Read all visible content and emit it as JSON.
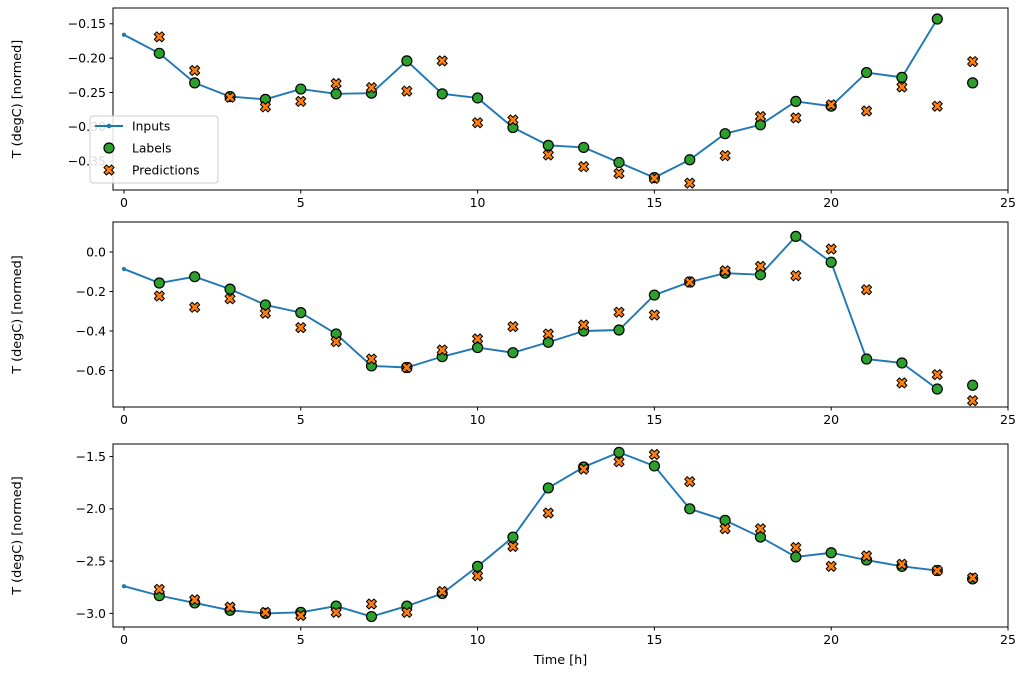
{
  "figure": {
    "kind": "matplotlib time-series forecast figure, 3 stacked subplots",
    "background": "#ffffff"
  },
  "xlabel": "Time [h]",
  "ylabel": "T (degC) [normed]",
  "x_ticks": {
    "values": [
      0,
      5,
      10,
      15,
      20,
      25
    ],
    "labels": [
      "0",
      "5",
      "10",
      "15",
      "20",
      "25"
    ]
  },
  "legend": {
    "items": [
      {
        "label": "Inputs",
        "marker": "line-dot"
      },
      {
        "label": "Labels",
        "marker": "circle"
      },
      {
        "label": "Predictions",
        "marker": "x-cross"
      }
    ]
  },
  "colors": {
    "inputs": "#1f77b4",
    "labels": "#2ca02c",
    "predictions": "#ff7f0e",
    "marker_edge": "#000000",
    "spine": "#000000",
    "legend_border": "#cccccc",
    "legend_bg": "#ffffff"
  },
  "chart_data": [
    {
      "type": "line",
      "subtitle": "subplot 1 of 3",
      "xlabel": "",
      "ylabel": "T (degC) [normed]",
      "xlim": [
        -0.31,
        25.0
      ],
      "ylim": [
        -0.392,
        -0.127
      ],
      "yticks": {
        "values": [
          -0.15,
          -0.2,
          -0.25,
          -0.3,
          -0.35
        ],
        "labels": [
          "−0.15",
          "−0.20",
          "−0.25",
          "−0.30",
          "−0.35"
        ]
      },
      "legend_visible": true,
      "series": [
        {
          "name": "Inputs",
          "style": "line-dot",
          "x": [
            0,
            1,
            2,
            3,
            4,
            5,
            6,
            7,
            8,
            9,
            10,
            11,
            12,
            13,
            14,
            15,
            16,
            17,
            18,
            19,
            20,
            21,
            22,
            23
          ],
          "y": [
            -0.166,
            -0.193,
            -0.236,
            -0.256,
            -0.26,
            -0.245,
            -0.252,
            -0.251,
            -0.204,
            -0.252,
            -0.258,
            -0.301,
            -0.327,
            -0.33,
            -0.352,
            -0.374,
            -0.348,
            -0.31,
            -0.297,
            -0.263,
            -0.27,
            -0.221,
            -0.228,
            -0.143
          ]
        },
        {
          "name": "Labels",
          "style": "circle",
          "x": [
            1,
            2,
            3,
            4,
            5,
            6,
            7,
            8,
            9,
            10,
            11,
            12,
            13,
            14,
            15,
            16,
            17,
            18,
            19,
            20,
            21,
            22,
            23,
            24
          ],
          "y": [
            -0.193,
            -0.236,
            -0.256,
            -0.26,
            -0.245,
            -0.252,
            -0.251,
            -0.204,
            -0.252,
            -0.258,
            -0.301,
            -0.327,
            -0.33,
            -0.352,
            -0.374,
            -0.348,
            -0.31,
            -0.297,
            -0.263,
            -0.27,
            -0.221,
            -0.228,
            -0.143,
            -0.236
          ]
        },
        {
          "name": "Predictions",
          "style": "x-cross",
          "x": [
            1,
            2,
            3,
            4,
            5,
            6,
            7,
            8,
            9,
            10,
            11,
            12,
            13,
            14,
            15,
            16,
            17,
            18,
            19,
            20,
            21,
            22,
            23,
            24
          ],
          "y": [
            -0.169,
            -0.218,
            -0.257,
            -0.271,
            -0.263,
            -0.237,
            -0.243,
            -0.248,
            -0.204,
            -0.294,
            -0.29,
            -0.341,
            -0.358,
            -0.368,
            -0.375,
            -0.382,
            -0.342,
            -0.285,
            -0.287,
            -0.268,
            -0.277,
            -0.242,
            -0.27,
            -0.205
          ]
        }
      ]
    },
    {
      "type": "line",
      "subtitle": "subplot 2 of 3",
      "xlabel": "",
      "ylabel": "T (degC) [normed]",
      "xlim": [
        -0.31,
        25.0
      ],
      "ylim": [
        -0.785,
        0.152
      ],
      "yticks": {
        "values": [
          0.0,
          -0.2,
          -0.4,
          -0.6
        ],
        "labels": [
          "0.0",
          "−0.2",
          "−0.4",
          "−0.6"
        ]
      },
      "legend_visible": false,
      "series": [
        {
          "name": "Inputs",
          "style": "line-dot",
          "x": [
            0,
            1,
            2,
            3,
            4,
            5,
            6,
            7,
            8,
            9,
            10,
            11,
            12,
            13,
            14,
            15,
            16,
            17,
            18,
            19,
            20,
            21,
            22,
            23
          ],
          "y": [
            -0.086,
            -0.157,
            -0.125,
            -0.188,
            -0.268,
            -0.307,
            -0.415,
            -0.577,
            -0.585,
            -0.53,
            -0.484,
            -0.51,
            -0.457,
            -0.4,
            -0.395,
            -0.218,
            -0.152,
            -0.107,
            -0.115,
            0.079,
            -0.052,
            -0.542,
            -0.562,
            -0.694
          ]
        },
        {
          "name": "Labels",
          "style": "circle",
          "x": [
            1,
            2,
            3,
            4,
            5,
            6,
            7,
            8,
            9,
            10,
            11,
            12,
            13,
            14,
            15,
            16,
            17,
            18,
            19,
            20,
            21,
            22,
            23,
            24
          ],
          "y": [
            -0.157,
            -0.125,
            -0.188,
            -0.268,
            -0.307,
            -0.415,
            -0.577,
            -0.585,
            -0.53,
            -0.484,
            -0.51,
            -0.457,
            -0.4,
            -0.395,
            -0.218,
            -0.152,
            -0.107,
            -0.115,
            0.079,
            -0.052,
            -0.542,
            -0.562,
            -0.694,
            -0.675
          ]
        },
        {
          "name": "Predictions",
          "style": "x-cross",
          "x": [
            1,
            2,
            3,
            4,
            5,
            6,
            7,
            8,
            9,
            10,
            11,
            12,
            13,
            14,
            15,
            16,
            17,
            18,
            19,
            20,
            21,
            22,
            23,
            24
          ],
          "y": [
            -0.223,
            -0.28,
            -0.237,
            -0.31,
            -0.383,
            -0.454,
            -0.542,
            -0.585,
            -0.496,
            -0.44,
            -0.378,
            -0.415,
            -0.37,
            -0.305,
            -0.319,
            -0.152,
            -0.095,
            -0.073,
            -0.12,
            0.015,
            -0.191,
            -0.663,
            -0.621,
            -0.753
          ]
        }
      ]
    },
    {
      "type": "line",
      "subtitle": "subplot 3 of 3",
      "xlabel": "Time [h]",
      "ylabel": "T (degC) [normed]",
      "xlim": [
        -0.31,
        25.0
      ],
      "ylim": [
        -3.13,
        -1.38
      ],
      "yticks": {
        "values": [
          -1.5,
          -2.0,
          -2.5,
          -3.0
        ],
        "labels": [
          "−1.5",
          "−2.0",
          "−2.5",
          "−3.0"
        ]
      },
      "legend_visible": false,
      "series": [
        {
          "name": "Inputs",
          "style": "line-dot",
          "x": [
            0,
            1,
            2,
            3,
            4,
            5,
            6,
            7,
            8,
            9,
            10,
            11,
            12,
            13,
            14,
            15,
            16,
            17,
            18,
            19,
            20,
            21,
            22,
            23
          ],
          "y": [
            -2.74,
            -2.83,
            -2.9,
            -2.97,
            -3.0,
            -2.99,
            -2.93,
            -3.03,
            -2.93,
            -2.81,
            -2.55,
            -2.27,
            -1.8,
            -1.6,
            -1.46,
            -1.59,
            -2.0,
            -2.11,
            -2.27,
            -2.46,
            -2.42,
            -2.49,
            -2.55,
            -2.59
          ]
        },
        {
          "name": "Labels",
          "style": "circle",
          "x": [
            1,
            2,
            3,
            4,
            5,
            6,
            7,
            8,
            9,
            10,
            11,
            12,
            13,
            14,
            15,
            16,
            17,
            18,
            19,
            20,
            21,
            22,
            23,
            24
          ],
          "y": [
            -2.83,
            -2.9,
            -2.97,
            -3.0,
            -2.99,
            -2.93,
            -3.03,
            -2.93,
            -2.81,
            -2.55,
            -2.27,
            -1.8,
            -1.6,
            -1.46,
            -1.59,
            -2.0,
            -2.11,
            -2.27,
            -2.46,
            -2.42,
            -2.49,
            -2.55,
            -2.59,
            -2.67
          ]
        },
        {
          "name": "Predictions",
          "style": "x-cross",
          "x": [
            1,
            2,
            3,
            4,
            5,
            6,
            7,
            8,
            9,
            10,
            11,
            12,
            13,
            14,
            15,
            16,
            17,
            18,
            19,
            20,
            21,
            22,
            23,
            24
          ],
          "y": [
            -2.77,
            -2.87,
            -2.94,
            -2.99,
            -3.02,
            -2.99,
            -2.91,
            -2.99,
            -2.79,
            -2.64,
            -2.36,
            -2.04,
            -1.62,
            -1.55,
            -1.48,
            -1.74,
            -2.19,
            -2.19,
            -2.37,
            -2.55,
            -2.45,
            -2.53,
            -2.59,
            -2.66
          ]
        }
      ]
    }
  ]
}
